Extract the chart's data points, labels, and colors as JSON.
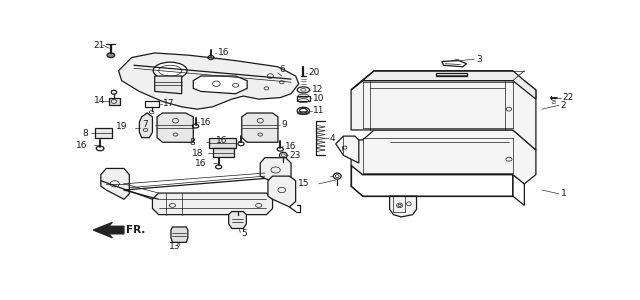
{
  "bg_color": "#ffffff",
  "line_color": "#1a1a1a",
  "fig_width": 6.4,
  "fig_height": 3.0,
  "dpi": 100
}
